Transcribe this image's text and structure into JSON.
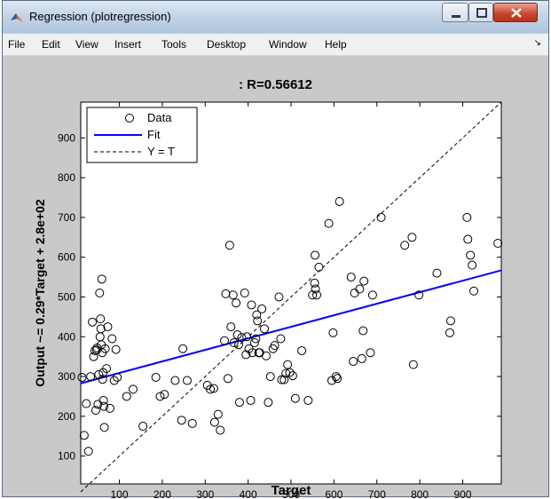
{
  "window": {
    "title": "Regression (plotregression)",
    "controls": [
      "minimize",
      "maximize",
      "close"
    ]
  },
  "menubar": {
    "items": [
      "File",
      "Edit",
      "View",
      "Insert",
      "Tools",
      "Desktop",
      "Window",
      "Help"
    ],
    "overflow_icon": "chevron-icon"
  },
  "chart_data": {
    "type": "scatter",
    "title": ": R=0.56612",
    "xlabel": "Target",
    "ylabel": "Output ~= 0.29*Target + 2.8e+02",
    "xlim": [
      10,
      990
    ],
    "ylim": [
      30,
      990
    ],
    "xticks": [
      100,
      200,
      300,
      400,
      500,
      600,
      700,
      800,
      900
    ],
    "yticks": [
      100,
      200,
      300,
      400,
      500,
      600,
      700,
      800,
      900
    ],
    "grid": false,
    "legend_position": "top-left",
    "legend": [
      "Data",
      "Fit",
      "Y = T"
    ],
    "fit": {
      "slope": 0.29,
      "intercept": 280
    },
    "colors": {
      "fit": "#0000ff",
      "data": "#000000",
      "identity": "#000000"
    },
    "data": [
      [
        13,
        298
      ],
      [
        18,
        152
      ],
      [
        23,
        232
      ],
      [
        28,
        112
      ],
      [
        33,
        300
      ],
      [
        37,
        437
      ],
      [
        40,
        350
      ],
      [
        43,
        365
      ],
      [
        45,
        215
      ],
      [
        47,
        367
      ],
      [
        48,
        372
      ],
      [
        50,
        230
      ],
      [
        52,
        305
      ],
      [
        54,
        510
      ],
      [
        55,
        400
      ],
      [
        56,
        445
      ],
      [
        57,
        420
      ],
      [
        58,
        380
      ],
      [
        59,
        545
      ],
      [
        60,
        360
      ],
      [
        61,
        293
      ],
      [
        62,
        310
      ],
      [
        63,
        240
      ],
      [
        64,
        225
      ],
      [
        65,
        172
      ],
      [
        67,
        370
      ],
      [
        70,
        320
      ],
      [
        73,
        425
      ],
      [
        78,
        220
      ],
      [
        83,
        395
      ],
      [
        88,
        290
      ],
      [
        92,
        368
      ],
      [
        95,
        298
      ],
      [
        117,
        250
      ],
      [
        132,
        268
      ],
      [
        155,
        175
      ],
      [
        185,
        298
      ],
      [
        195,
        250
      ],
      [
        205,
        255
      ],
      [
        230,
        290
      ],
      [
        245,
        190
      ],
      [
        248,
        370
      ],
      [
        258,
        290
      ],
      [
        270,
        182
      ],
      [
        305,
        278
      ],
      [
        312,
        268
      ],
      [
        320,
        270
      ],
      [
        322,
        185
      ],
      [
        330,
        205
      ],
      [
        335,
        165
      ],
      [
        345,
        390
      ],
      [
        348,
        508
      ],
      [
        353,
        295
      ],
      [
        357,
        630
      ],
      [
        360,
        425
      ],
      [
        365,
        505
      ],
      [
        367,
        385
      ],
      [
        372,
        485
      ],
      [
        375,
        405
      ],
      [
        378,
        380
      ],
      [
        380,
        235
      ],
      [
        385,
        398
      ],
      [
        392,
        510
      ],
      [
        395,
        355
      ],
      [
        397,
        400
      ],
      [
        402,
        370
      ],
      [
        406,
        240
      ],
      [
        408,
        480
      ],
      [
        410,
        360
      ],
      [
        415,
        385
      ],
      [
        418,
        395
      ],
      [
        420,
        455
      ],
      [
        422,
        440
      ],
      [
        425,
        360
      ],
      [
        427,
        360
      ],
      [
        432,
        470
      ],
      [
        438,
        420
      ],
      [
        442,
        352
      ],
      [
        447,
        235
      ],
      [
        452,
        300
      ],
      [
        458,
        370
      ],
      [
        462,
        378
      ],
      [
        472,
        500
      ],
      [
        476,
        395
      ],
      [
        478,
        292
      ],
      [
        484,
        292
      ],
      [
        488,
        308
      ],
      [
        492,
        330
      ],
      [
        497,
        310
      ],
      [
        504,
        302
      ],
      [
        510,
        245
      ],
      [
        525,
        365
      ],
      [
        540,
        240
      ],
      [
        550,
        505
      ],
      [
        555,
        535
      ],
      [
        556,
        605
      ],
      [
        557,
        520
      ],
      [
        560,
        505
      ],
      [
        565,
        575
      ],
      [
        588,
        685
      ],
      [
        595,
        290
      ],
      [
        598,
        410
      ],
      [
        605,
        300
      ],
      [
        608,
        295
      ],
      [
        613,
        740
      ],
      [
        640,
        550
      ],
      [
        645,
        338
      ],
      [
        648,
        510
      ],
      [
        660,
        520
      ],
      [
        665,
        345
      ],
      [
        668,
        415
      ],
      [
        670,
        540
      ],
      [
        685,
        360
      ],
      [
        690,
        505
      ],
      [
        710,
        700
      ],
      [
        765,
        630
      ],
      [
        782,
        650
      ],
      [
        785,
        330
      ],
      [
        798,
        505
      ],
      [
        840,
        560
      ],
      [
        870,
        410
      ],
      [
        872,
        440
      ],
      [
        910,
        700
      ],
      [
        912,
        645
      ],
      [
        918,
        605
      ],
      [
        922,
        580
      ],
      [
        926,
        515
      ],
      [
        982,
        635
      ]
    ]
  }
}
